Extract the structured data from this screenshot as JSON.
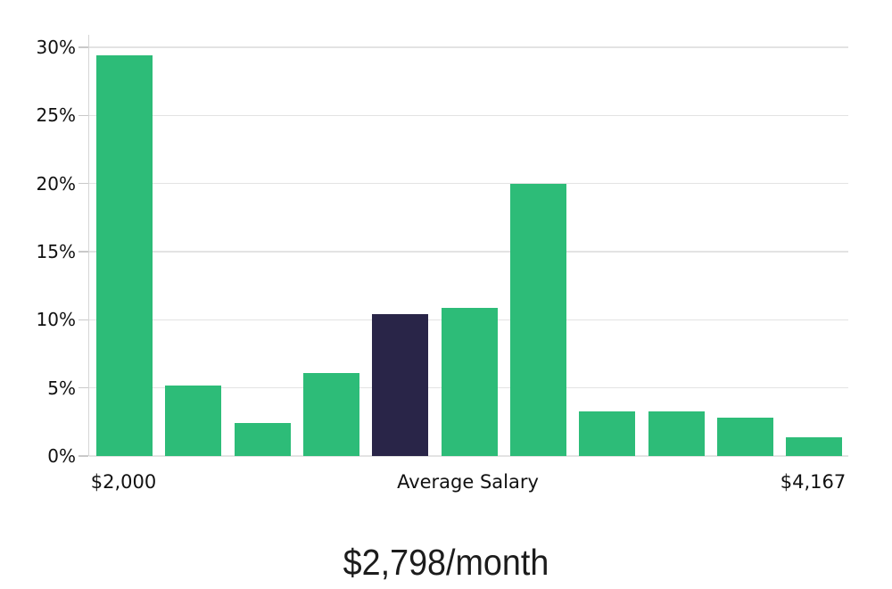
{
  "chart_data": {
    "type": "bar",
    "title": "",
    "xlabel": "",
    "ylabel": "",
    "values": [
      29.4,
      5.2,
      2.4,
      6.1,
      10.4,
      10.9,
      20.0,
      3.3,
      3.3,
      2.8,
      1.4
    ],
    "unit": "%",
    "bar_count": 11,
    "highlight_index": 4,
    "highlight_meaning": "Average Salary",
    "x_labels": {
      "left": "$2,000",
      "center": "Average Salary",
      "right": "$4,167"
    },
    "y_ticks": [
      "0%",
      "5%",
      "10%",
      "15%",
      "20%",
      "25%",
      "30%"
    ],
    "y_tick_values": [
      0,
      5,
      10,
      15,
      20,
      25,
      30
    ],
    "ylim": [
      0,
      30
    ],
    "grid": true,
    "legend": "none",
    "colors": {
      "bar": "#2dbc78",
      "highlight_bar": "#292548",
      "gridline": "#e3e3e3",
      "axis": "#d6d6d6",
      "tick": "#c9c9c9",
      "label": "#111111"
    }
  },
  "caption": {
    "text": "$2,798/month"
  }
}
